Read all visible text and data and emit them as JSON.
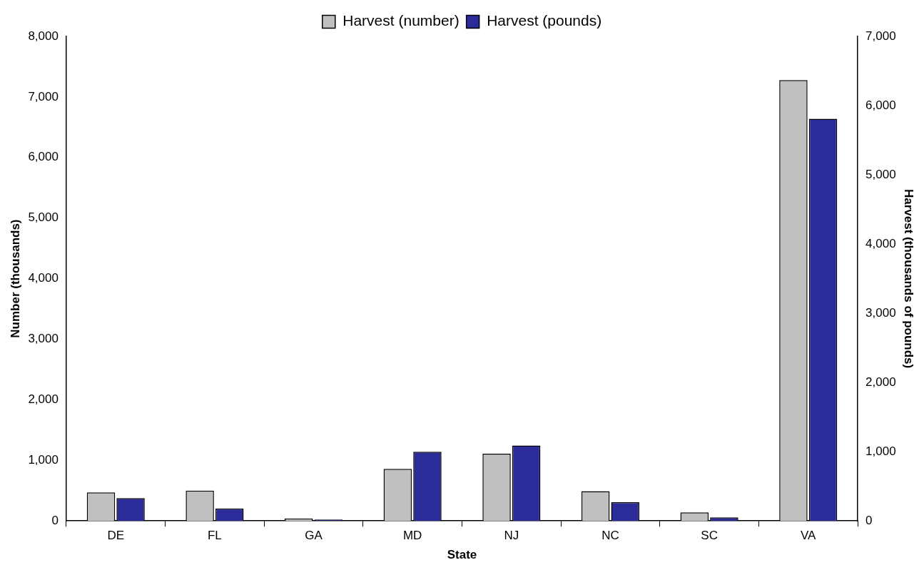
{
  "chart_data": {
    "type": "bar",
    "xlabel": "State",
    "ylabel": "Number (thousands)",
    "y2label": "Harvest (thousands of pounds)",
    "categories": [
      "DE",
      "FL",
      "GA",
      "MD",
      "NJ",
      "NC",
      "SC",
      "VA"
    ],
    "series": [
      {
        "name": "Harvest (number)",
        "color": "#c0c0c0",
        "values": [
          470,
          500,
          40,
          860,
          1110,
          490,
          140,
          7280
        ]
      },
      {
        "name": "Harvest (pounds)",
        "color": "#2b2b9a",
        "axis": "y2",
        "values": [
          330,
          180,
          20,
          1000,
          1090,
          270,
          50,
          5810
        ]
      }
    ],
    "ylim": [
      0,
      8000
    ],
    "yticks": [
      0,
      {
        "value": 1000,
        "label": "1,000"
      },
      {
        "value": 2000,
        "label": "2,000"
      },
      {
        "value": 3000,
        "label": "3,000"
      },
      {
        "value": 4000,
        "label": "4,000"
      },
      {
        "value": 5000,
        "label": "5,000"
      },
      {
        "value": 6000,
        "label": "6,000"
      },
      {
        "value": 7000,
        "label": "7,000"
      },
      {
        "value": 8000,
        "label": "8,000"
      }
    ],
    "y2lim": [
      0,
      7000
    ],
    "y2ticks": [
      0,
      {
        "value": 1000,
        "label": "1,000"
      },
      {
        "value": 2000,
        "label": "2,000"
      },
      {
        "value": 3000,
        "label": "3,000"
      },
      {
        "value": 4000,
        "label": "4,000"
      },
      {
        "value": 5000,
        "label": "5,000"
      },
      {
        "value": 6000,
        "label": "6,000"
      },
      {
        "value": 7000,
        "label": "7,000"
      }
    ],
    "grid": false,
    "legend": "top"
  }
}
